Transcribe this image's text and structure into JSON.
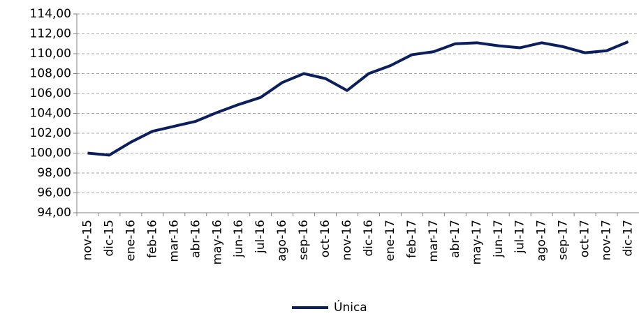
{
  "chart_data": {
    "type": "line",
    "categories": [
      "nov-15",
      "dic-15",
      "ene-16",
      "feb-16",
      "mar-16",
      "abr-16",
      "may-16",
      "jun-16",
      "jul-16",
      "ago-16",
      "sep-16",
      "oct-16",
      "nov-16",
      "dic-16",
      "ene-17",
      "feb-17",
      "mar-17",
      "abr-17",
      "may-17",
      "jun-17",
      "jul-17",
      "ago-17",
      "sep-17",
      "oct-17",
      "nov-17",
      "dic-17"
    ],
    "series": [
      {
        "name": "Única",
        "color": "#0b1f5c",
        "values": [
          100.0,
          99.8,
          101.1,
          102.2,
          102.7,
          103.2,
          104.1,
          104.9,
          105.6,
          107.1,
          108.0,
          107.5,
          106.3,
          108.0,
          108.8,
          109.9,
          110.2,
          111.0,
          111.1,
          110.8,
          110.6,
          111.1,
          110.7,
          110.1,
          110.3,
          111.2
        ]
      }
    ],
    "ylim": [
      94,
      114
    ],
    "yticks": [
      {
        "value": 94,
        "label": "94,00"
      },
      {
        "value": 96,
        "label": "96,00"
      },
      {
        "value": 98,
        "label": "98,00"
      },
      {
        "value": 100,
        "label": "100,00"
      },
      {
        "value": 102,
        "label": "102,00"
      },
      {
        "value": 104,
        "label": "104,00"
      },
      {
        "value": 106,
        "label": "106,00"
      },
      {
        "value": 108,
        "label": "108,00"
      },
      {
        "value": 110,
        "label": "110,00"
      },
      {
        "value": 112,
        "label": "112,00"
      },
      {
        "value": 114,
        "label": "114,00"
      }
    ],
    "grid": true,
    "legend": "bottom"
  }
}
